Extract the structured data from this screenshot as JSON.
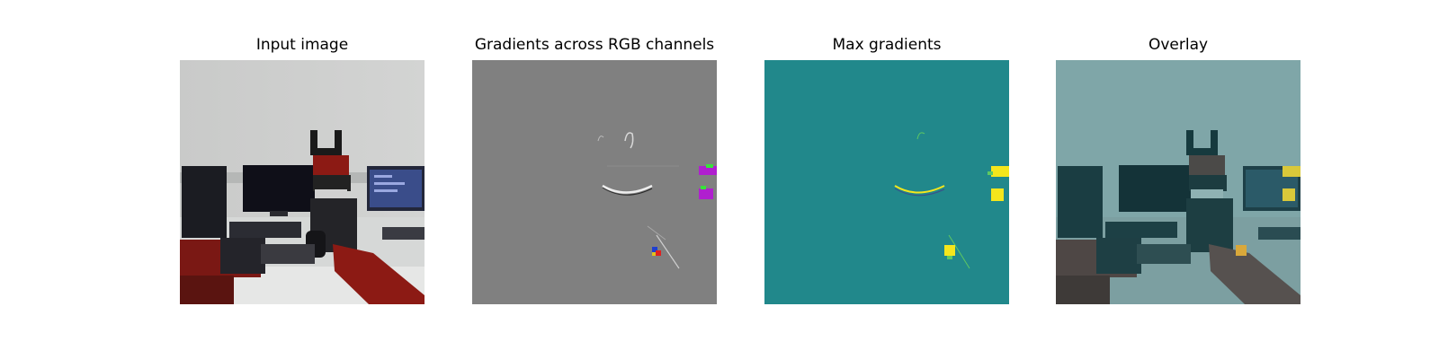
{
  "figure": {
    "panels": [
      {
        "title": "Input image"
      },
      {
        "title": "Gradients across RGB channels"
      },
      {
        "title": "Max gradients"
      },
      {
        "title": "Overlay"
      }
    ]
  },
  "colors": {
    "gradient_background": "#808080",
    "max_gradient_background": "#21888b",
    "max_gradient_highlight": "#f4e61c",
    "robot_red": "#8c1a14"
  }
}
